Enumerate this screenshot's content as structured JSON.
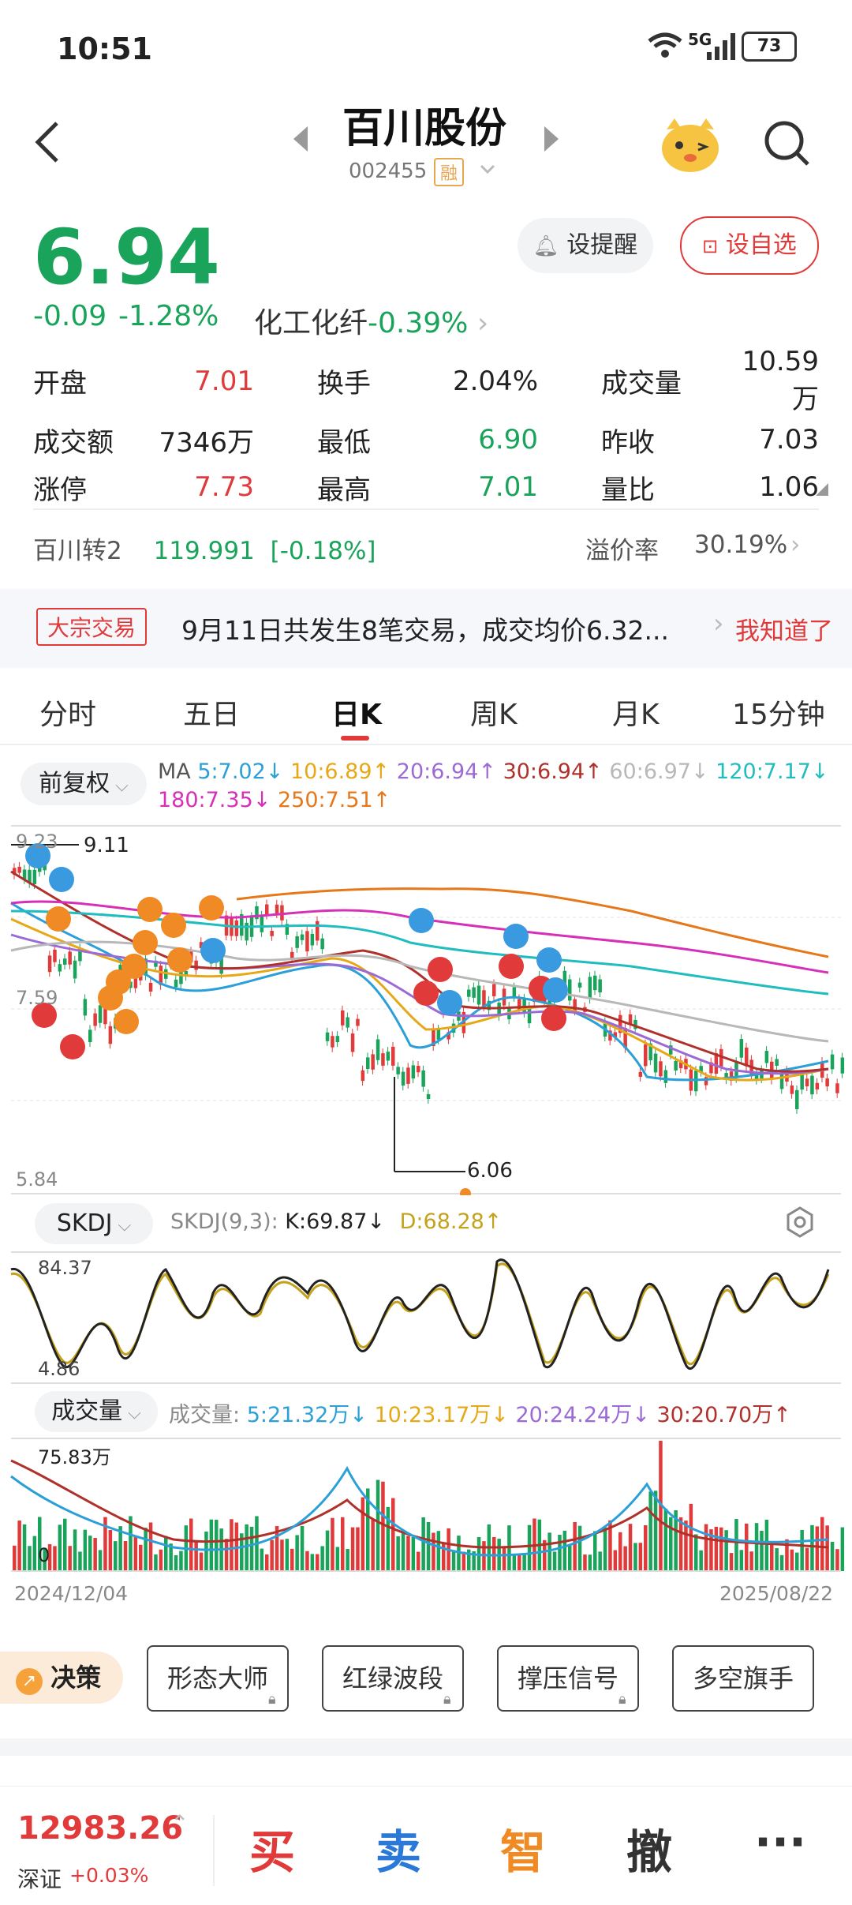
{
  "status": {
    "time": "10:51",
    "network": "5G",
    "battery": "73"
  },
  "header": {
    "stock_name": "百川股份",
    "stock_code": "002455",
    "margin_tag": "融"
  },
  "quote": {
    "price": "6.94",
    "change": "-0.09",
    "change_pct": "-1.28%",
    "sector": "化工化纤",
    "sector_pct": "-0.39%",
    "alert_label": "设提醒",
    "watch_label": "设自选"
  },
  "stats": [
    {
      "label": "开盘",
      "value": "7.01"
    },
    {
      "label": "换手",
      "value": "2.04%"
    },
    {
      "label": "成交量",
      "value": "10.59万"
    },
    {
      "label": "成交额",
      "value": "7346万"
    },
    {
      "label": "最低",
      "value": "6.90"
    },
    {
      "label": "昨收",
      "value": "7.03"
    },
    {
      "label": "涨停",
      "value": "7.73"
    },
    {
      "label": "最高",
      "value": "7.01"
    },
    {
      "label": "量比",
      "value": "1.06"
    }
  ],
  "bond": {
    "name": "百川转2",
    "price": "119.991",
    "pct": "[-0.18%]",
    "premium_label": "溢价率",
    "premium": "30.19%"
  },
  "block_trade": {
    "tag": "大宗交易",
    "text": "9月11日共发生8笔交易，成交均价6.32...",
    "ack": "我知道了"
  },
  "tabs": [
    "分时",
    "五日",
    "日K",
    "周K",
    "月K",
    "15分钟"
  ],
  "ma": {
    "adjust": "前复权",
    "label": "MA",
    "items": [
      {
        "text": "5:7.02↓",
        "color": "#2a9fd8"
      },
      {
        "text": "10:6.89↑",
        "color": "#e6a817"
      },
      {
        "text": "20:6.94↑",
        "color": "#9b6ad6"
      },
      {
        "text": "30:6.94↑",
        "color": "#b0302a"
      },
      {
        "text": "60:6.97↓",
        "color": "#b8b8b8"
      },
      {
        "text": "120:7.17↓",
        "color": "#1fbcc0"
      },
      {
        "text": "180:7.35↓",
        "color": "#d62fb8"
      },
      {
        "text": "250:7.51↑",
        "color": "#e6781a"
      }
    ]
  },
  "kline": {
    "y_top": "9.23",
    "y_mid": "7.59",
    "y_bottom": "5.84",
    "high_mark": "9.11",
    "low_mark": "6.06"
  },
  "skdj": {
    "selector": "SKDJ",
    "name": "SKDJ(9,3):",
    "k": "K:69.87↓",
    "d": "D:68.28↑",
    "y_top": "84.37",
    "y_bottom": "4.86"
  },
  "volume": {
    "selector": "成交量",
    "name": "成交量:",
    "items": [
      {
        "text": "5:21.32万↓",
        "color": "#2a9fd8"
      },
      {
        "text": "10:23.17万↓",
        "color": "#e6a817"
      },
      {
        "text": "20:24.24万↓",
        "color": "#9b6ad6"
      },
      {
        "text": "30:20.70万↑",
        "color": "#b0302a"
      }
    ],
    "y_top": "75.83万",
    "y_zero": "0"
  },
  "dates": {
    "start": "2024/12/04",
    "end": "2025/08/22"
  },
  "tools": {
    "decision": "决策",
    "items": [
      "形态大师",
      "红绿波段",
      "撑压信号",
      "多空旗手"
    ]
  },
  "bottom": {
    "index_value": "12983.26",
    "index_name": "深证",
    "index_pct": "+0.03%",
    "buy": "买",
    "sell": "卖",
    "smart": "智",
    "cancel": "撤",
    "more": "···"
  }
}
